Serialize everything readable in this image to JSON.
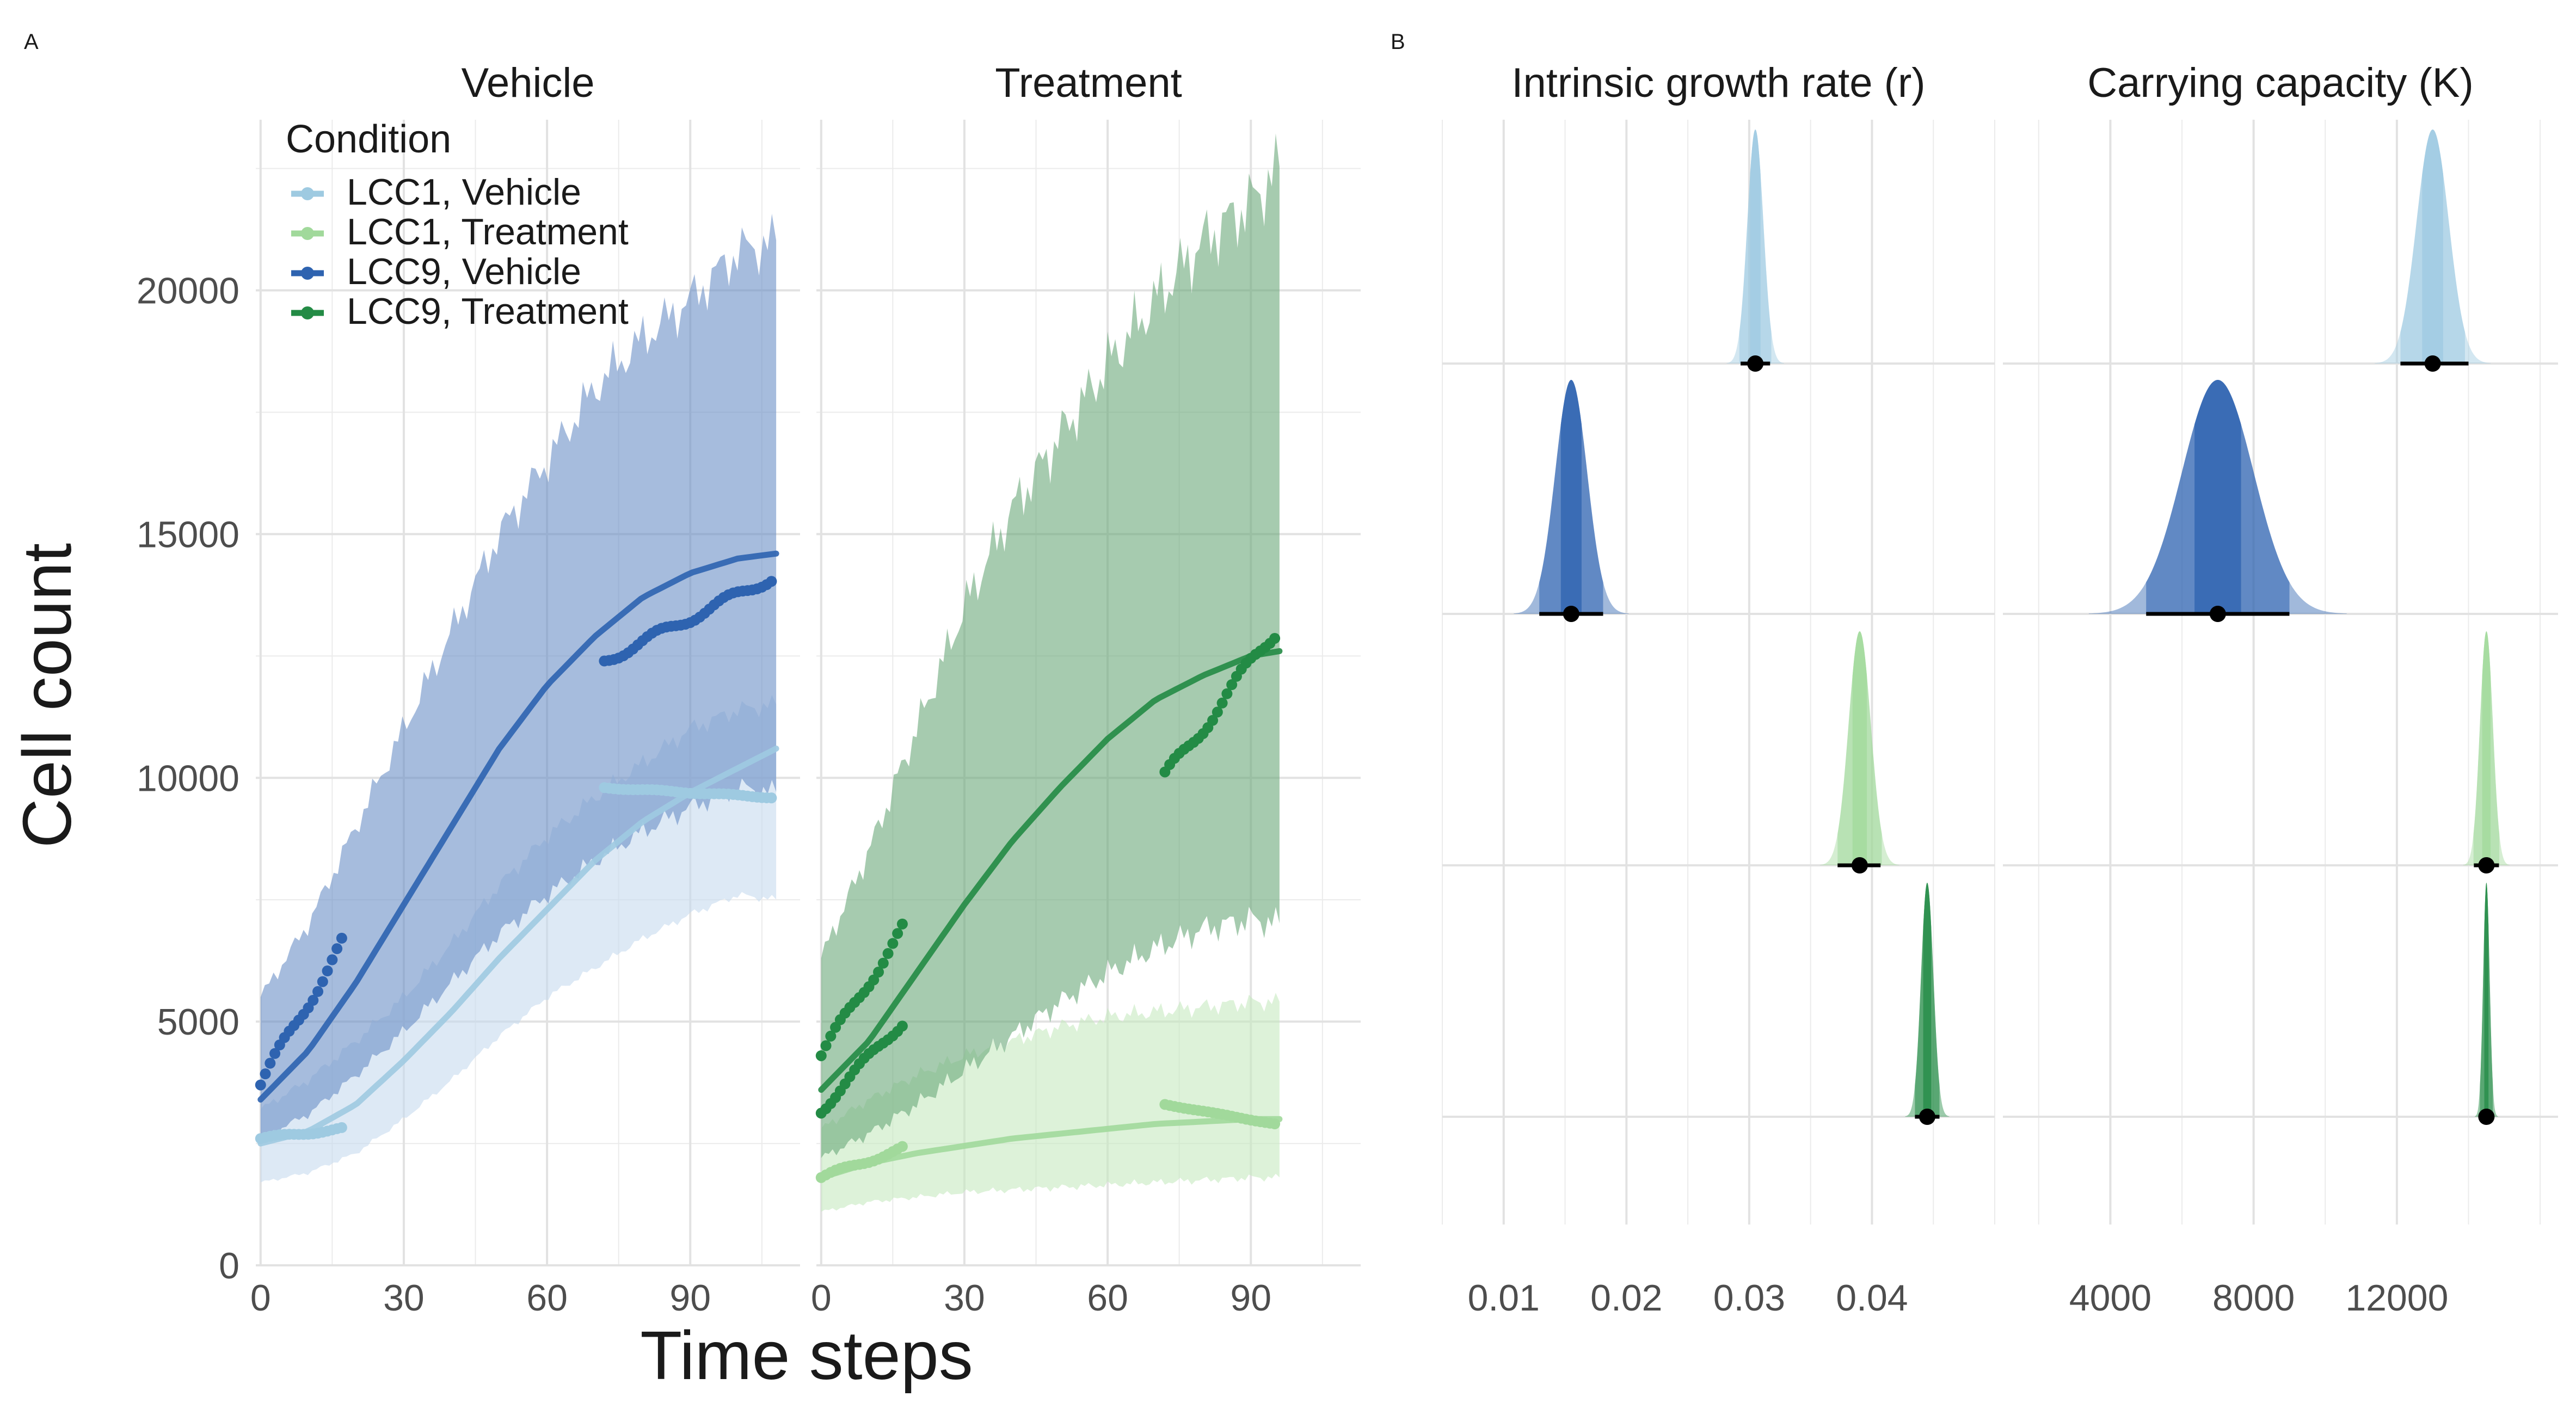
{
  "panel_labels": {
    "a": "A",
    "b": "B"
  },
  "colors": {
    "lcc1_vehicle": "#9ecae1",
    "lcc1_treatment": "#a1d99b",
    "lcc9_vehicle": "#2e63b0",
    "lcc9_treatment": "#238b45",
    "lcc1_vehicle_band": "#c6dbef",
    "lcc9_vehicle_band": "#6b8fc7",
    "lcc1_treatment_band": "#c7e9c0",
    "lcc9_treatment_band": "#6aa97a",
    "grid": "#ebebeb",
    "point_estimate": "#000000"
  },
  "chart_data": [
    {
      "type": "line",
      "title": "Vehicle",
      "facet": "Vehicle",
      "xlabel": "Time steps",
      "ylabel": "Cell count",
      "xlim": [
        -1,
        113
      ],
      "ylim": [
        0,
        23500
      ],
      "x_ticks": [
        0,
        30,
        60,
        90
      ],
      "y_ticks": [
        0,
        5000,
        10000,
        15000,
        20000
      ],
      "x_tick_labels": [
        "0",
        "30",
        "60",
        "90"
      ],
      "y_tick_labels": [
        "0",
        "5000",
        "10000",
        "15000",
        "20000"
      ],
      "legend": {
        "title": "Condition",
        "placement": "top-left",
        "entries": [
          "LCC1, Vehicle",
          "LCC1, Treatment",
          "LCC9, Vehicle",
          "LCC9, Treatment"
        ]
      },
      "series": [
        {
          "name": "LCC1, Vehicle",
          "fit": {
            "x": [
              0,
              10,
              20,
              30,
              40,
              50,
              60,
              70,
              80,
              90,
              100,
              108
            ],
            "y": [
              2500,
              2750,
              3300,
              4200,
              5200,
              6300,
              7300,
              8300,
              9100,
              9700,
              10200,
              10600
            ]
          },
          "band": {
            "x": [
              0,
              10,
              20,
              30,
              40,
              50,
              60,
              70,
              80,
              90,
              100,
              108
            ],
            "lower": [
              1700,
              1900,
              2300,
              3000,
              3800,
              4700,
              5500,
              6100,
              6700,
              7200,
              7600,
              7500
            ],
            "upper": [
              3200,
              3800,
              4600,
              5500,
              6600,
              7800,
              8800,
              9600,
              10300,
              11000,
              11400,
              11500
            ]
          },
          "observed": [
            {
              "x_start": 0,
              "x_end": 17,
              "y_start": 2600,
              "y_end": 2800
            },
            {
              "x_start": 72,
              "x_end": 107,
              "y_start": 9800,
              "y_end": 9600
            }
          ]
        },
        {
          "name": "LCC9, Vehicle",
          "fit": {
            "x": [
              0,
              10,
              20,
              30,
              40,
              50,
              60,
              70,
              80,
              90,
              100,
              108
            ],
            "y": [
              3400,
              4400,
              5800,
              7400,
              9000,
              10600,
              11900,
              12900,
              13700,
              14200,
              14500,
              14600
            ]
          },
          "band": {
            "x": [
              0,
              10,
              20,
              30,
              40,
              50,
              60,
              70,
              80,
              90,
              100,
              108
            ],
            "lower": [
              2600,
              3100,
              3900,
              4800,
              5800,
              6800,
              7600,
              8300,
              8900,
              9400,
              9800,
              9700
            ],
            "upper": [
              5500,
              7000,
              9000,
              11000,
              13000,
              15000,
              16500,
              18000,
              19000,
              19800,
              20800,
              21000
            ]
          },
          "observed": [
            {
              "x_start": 0,
              "x_end": 17,
              "y_start": 3700,
              "y_end": 6600
            },
            {
              "x_start": 72,
              "x_end": 107,
              "y_start": 12400,
              "y_end": 14100
            }
          ]
        }
      ]
    },
    {
      "type": "line",
      "title": "Treatment",
      "facet": "Treatment",
      "xlabel": "Time steps",
      "ylabel": "Cell count",
      "xlim": [
        -1,
        113
      ],
      "ylim": [
        0,
        23500
      ],
      "x_ticks": [
        0,
        30,
        60,
        90
      ],
      "y_ticks": [
        0,
        5000,
        10000,
        15000,
        20000
      ],
      "x_tick_labels": [
        "0",
        "30",
        "60",
        "90"
      ],
      "series": [
        {
          "name": "LCC1, Treatment",
          "fit": {
            "x": [
              0,
              10,
              20,
              30,
              40,
              50,
              60,
              70,
              80,
              90,
              96
            ],
            "y": [
              1800,
              2100,
              2300,
              2450,
              2600,
              2700,
              2800,
              2900,
              2950,
              3000,
              3000
            ]
          },
          "band": {
            "x": [
              0,
              10,
              20,
              30,
              40,
              50,
              60,
              70,
              80,
              90,
              96
            ],
            "lower": [
              1100,
              1300,
              1400,
              1500,
              1550,
              1600,
              1650,
              1700,
              1750,
              1800,
              1800
            ],
            "upper": [
              2800,
              3400,
              3900,
              4300,
              4600,
              4900,
              5100,
              5200,
              5300,
              5400,
              5400
            ]
          },
          "observed": [
            {
              "x_start": 0,
              "x_end": 17,
              "y_start": 1800,
              "y_end": 2400
            },
            {
              "x_start": 72,
              "x_end": 95,
              "y_start": 3300,
              "y_end": 2900
            }
          ]
        },
        {
          "name": "LCC9, Treatment",
          "fit": {
            "x": [
              0,
              10,
              20,
              30,
              40,
              50,
              60,
              70,
              80,
              90,
              96
            ],
            "y": [
              3600,
              4600,
              6000,
              7400,
              8700,
              9800,
              10800,
              11600,
              12100,
              12500,
              12600
            ]
          },
          "band": {
            "x": [
              0,
              10,
              20,
              30,
              40,
              50,
              60,
              70,
              80,
              90,
              96
            ],
            "lower": [
              2200,
              2700,
              3300,
              4000,
              4700,
              5400,
              6000,
              6500,
              6900,
              7100,
              7000
            ],
            "upper": [
              6300,
              8500,
              11000,
              13500,
              15500,
              17000,
              18500,
              19800,
              21000,
              21800,
              22500
            ]
          },
          "observed": [
            {
              "x_start": 0,
              "x_end": 17,
              "y_start": 4300,
              "y_end": 6900
            },
            {
              "x_start": 0,
              "x_end": 17,
              "y_start": 3200,
              "y_end": 5000
            },
            {
              "x_start": 72,
              "x_end": 95,
              "y_start": 10000,
              "y_end": 13000
            }
          ]
        }
      ]
    },
    {
      "type": "density",
      "title": "Intrinsic growth rate (r)",
      "facet": "Intrinsic growth rate (r)",
      "xlim": [
        0.005,
        0.05
      ],
      "x_ticks": [
        0.01,
        0.02,
        0.03,
        0.04
      ],
      "x_tick_labels": [
        "0.01",
        "0.02",
        "0.03",
        "0.04"
      ],
      "rows": [
        {
          "name": "LCC1, Vehicle",
          "mean": 0.0305,
          "sd": 0.00065,
          "interval": [
            0.0293,
            0.0317
          ]
        },
        {
          "name": "LCC9, Vehicle",
          "mean": 0.0155,
          "sd": 0.0013,
          "interval": [
            0.0129,
            0.0181
          ]
        },
        {
          "name": "LCC1, Treatment",
          "mean": 0.039,
          "sd": 0.0009,
          "interval": [
            0.0372,
            0.0407
          ]
        },
        {
          "name": "LCC9, Treatment",
          "mean": 0.0445,
          "sd": 0.0005,
          "interval": [
            0.0435,
            0.0455
          ]
        }
      ]
    },
    {
      "type": "density",
      "title": "Carrying capacity (K)",
      "facet": "Carrying capacity (K)",
      "xlim": [
        1000,
        16500
      ],
      "x_ticks": [
        4000,
        8000,
        12000
      ],
      "x_tick_labels": [
        "4000",
        "8000",
        "12000"
      ],
      "rows": [
        {
          "name": "LCC1, Vehicle",
          "mean": 13000,
          "sd": 450,
          "interval": [
            12100,
            14000
          ]
        },
        {
          "name": "LCC9, Vehicle",
          "mean": 7000,
          "sd": 1000,
          "interval": [
            5000,
            9000
          ]
        },
        {
          "name": "LCC1, Treatment",
          "mean": 14500,
          "sd": 180,
          "interval": [
            14150,
            14850
          ]
        },
        {
          "name": "LCC9, Treatment",
          "mean": 14500,
          "sd": 90,
          "interval": [
            14400,
            14600
          ]
        }
      ]
    }
  ]
}
